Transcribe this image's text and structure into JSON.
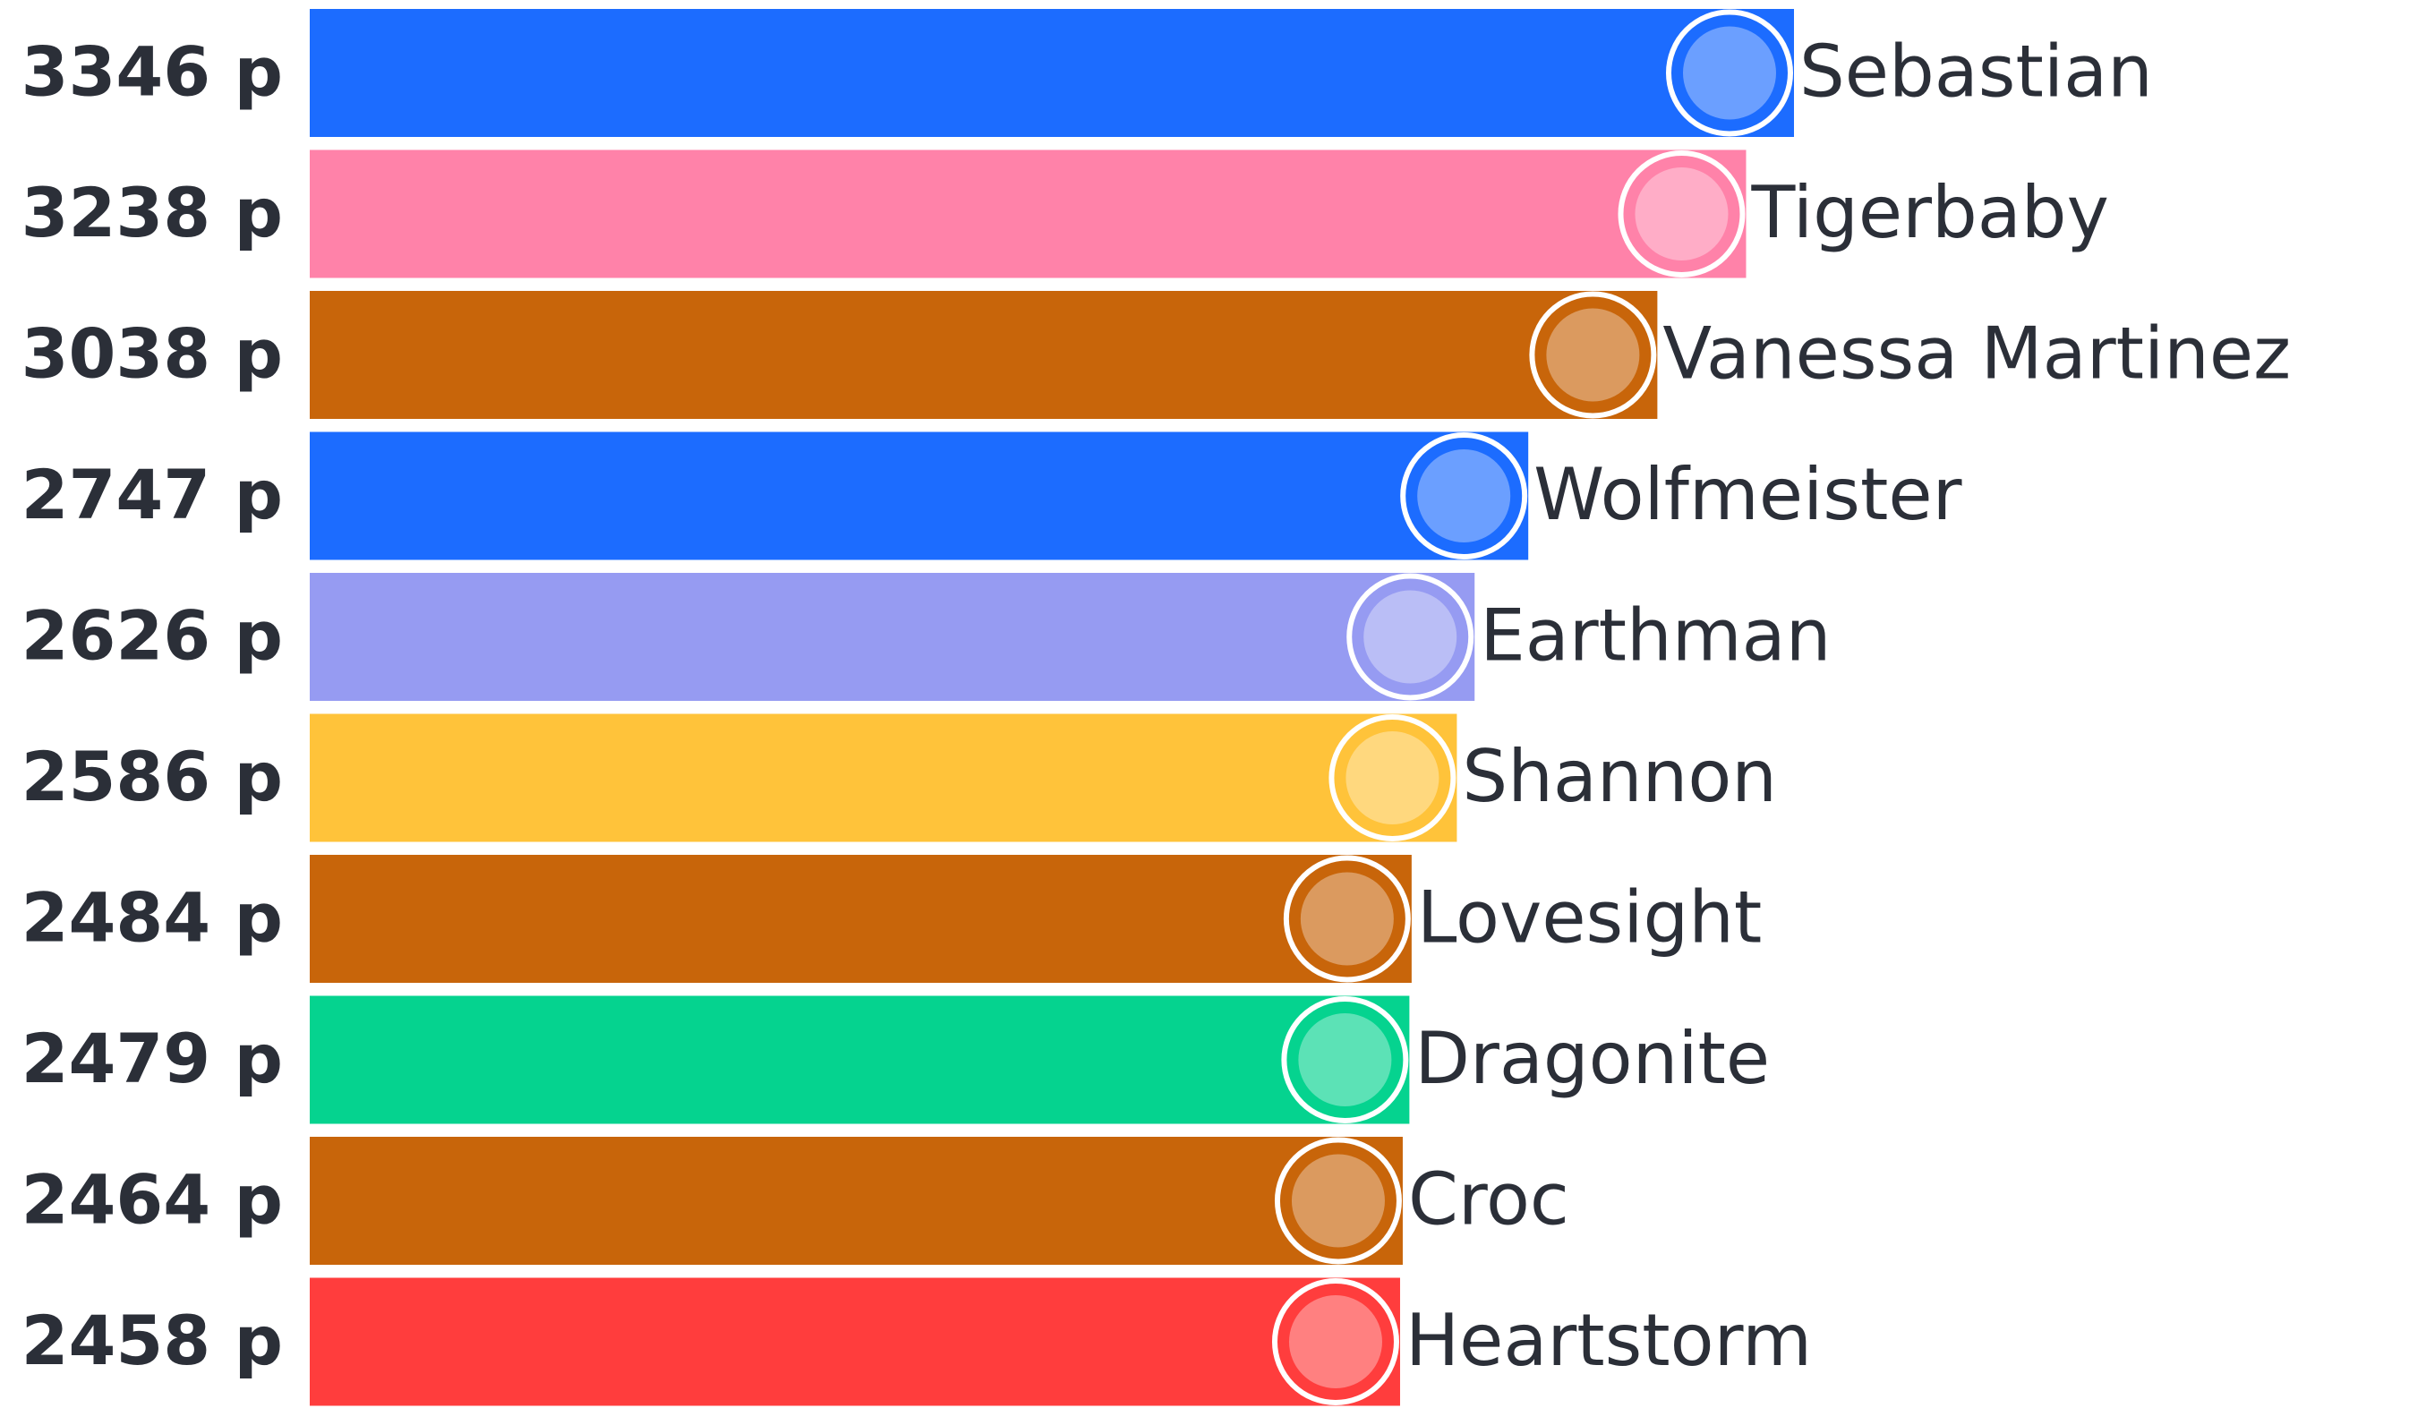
{
  "chart_data": {
    "type": "bar",
    "categories": [
      "Sebastian",
      "Tigerbaby",
      "Vanessa Martinez",
      "Wolfmeister",
      "Earthman",
      "Shannon",
      "Lovesight",
      "Dragonite",
      "Croc",
      "Heartstorm"
    ],
    "values": [
      3346,
      3238,
      3038,
      2747,
      2626,
      2586,
      2484,
      2479,
      2464,
      2458
    ],
    "value_labels": [
      "3346 p",
      "3238 p",
      "3038 p",
      "2747 p",
      "2626 p",
      "2586 p",
      "2484 p",
      "2479 p",
      "2464 p",
      "2458 p"
    ],
    "colors": [
      "#1c6cff",
      "#ff82a9",
      "#c8650a",
      "#1c6cff",
      "#969bf2",
      "#ffc33a",
      "#c8650a",
      "#05d38f",
      "#c8650a",
      "#ff3d3d"
    ]
  }
}
